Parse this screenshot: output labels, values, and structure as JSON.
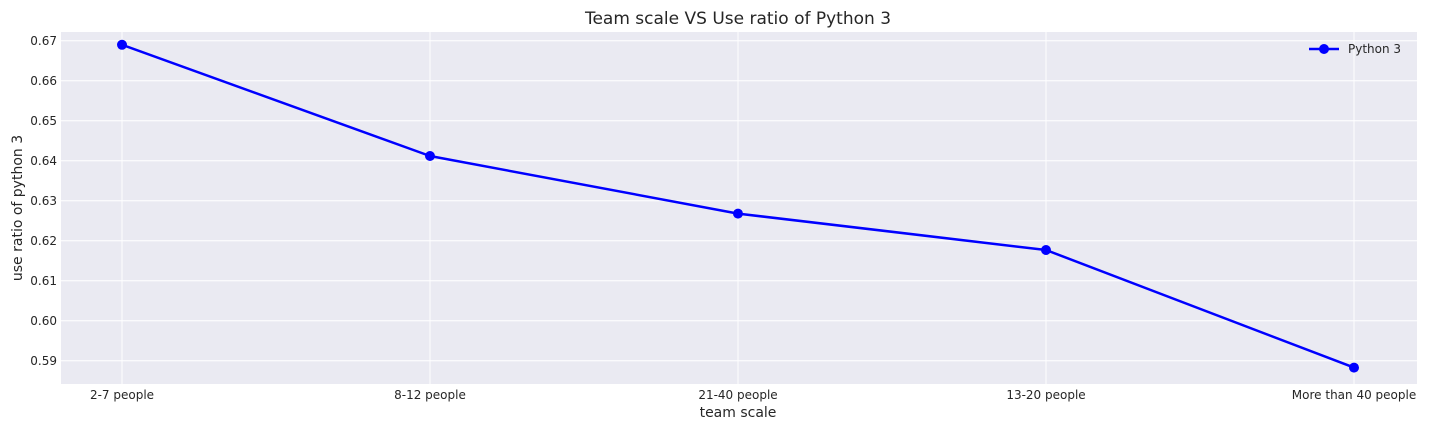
{
  "chart_data": {
    "type": "line",
    "title": "Team scale VS Use ratio of Python 3",
    "xlabel": "team scale",
    "ylabel": "use ratio of python 3",
    "categories": [
      "2-7 people",
      "8-12 people",
      "21-40 people",
      "13-20 people",
      "More than 40 people"
    ],
    "series": [
      {
        "name": "Python 3",
        "values": [
          0.669,
          0.6412,
          0.6268,
          0.6177,
          0.5883
        ],
        "color": "#0000ff"
      }
    ],
    "yticks": [
      0.59,
      0.6,
      0.61,
      0.62,
      0.63,
      0.64,
      0.65,
      0.66,
      0.67
    ],
    "ytick_labels": [
      "0.59",
      "0.60",
      "0.61",
      "0.62",
      "0.63",
      "0.64",
      "0.65",
      "0.66",
      "0.67"
    ],
    "ylim": [
      0.5842,
      0.6722
    ],
    "grid": true,
    "legend_position": "top-right",
    "background_color": "#eaeaf2"
  }
}
